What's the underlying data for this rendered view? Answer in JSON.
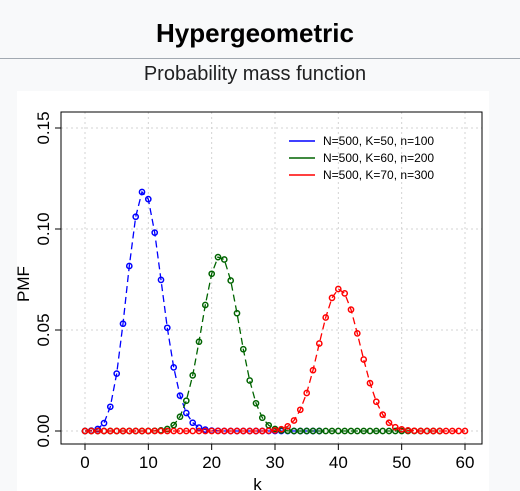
{
  "header": {
    "title": "Hypergeometric"
  },
  "caption": "Probability mass function",
  "chart_data": {
    "type": "line",
    "title": "",
    "xlabel": "k",
    "ylabel": "PMF",
    "xlim": [
      0,
      60
    ],
    "ylim": [
      0,
      0.15
    ],
    "xticks": [
      0,
      10,
      20,
      30,
      40,
      50,
      60
    ],
    "yticks": [
      0.0,
      0.05,
      0.1,
      0.15
    ],
    "ytick_labels": [
      "0.00",
      "0.05",
      "0.10",
      "0.15"
    ],
    "grid": true,
    "legend_position": "top-right",
    "markers": "open-circle",
    "line_style": "dashed",
    "series": [
      {
        "name": "N=500, K=50, n=100",
        "color": "#0000ff",
        "x": [
          0,
          1,
          2,
          3,
          4,
          5,
          6,
          7,
          8,
          9,
          10,
          11,
          12,
          13,
          14,
          15,
          16,
          17,
          18,
          19,
          20,
          21,
          22,
          23,
          24,
          25,
          26,
          27,
          28,
          29,
          30,
          31,
          32,
          33,
          34,
          35,
          36,
          37
        ],
        "values": [
          0.0,
          0.0002,
          0.001,
          0.0039,
          0.012,
          0.0284,
          0.0531,
          0.0817,
          0.1061,
          0.1183,
          0.1148,
          0.0982,
          0.0748,
          0.0511,
          0.0315,
          0.0175,
          0.0089,
          0.0041,
          0.0017,
          0.0007,
          0.0002,
          0.0001,
          0.0,
          0.0,
          0.0,
          0.0,
          0.0,
          0.0,
          0.0,
          0.0,
          0.0,
          0.0,
          0.0,
          0.0,
          0.0,
          0.0,
          0.0,
          0.0
        ]
      },
      {
        "name": "N=500, K=60, n=200",
        "color": "#006400",
        "x": [
          0,
          1,
          2,
          3,
          4,
          5,
          6,
          7,
          8,
          9,
          10,
          11,
          12,
          13,
          14,
          15,
          16,
          17,
          18,
          19,
          20,
          21,
          22,
          23,
          24,
          25,
          26,
          27,
          28,
          29,
          30,
          31,
          32,
          33,
          34,
          35,
          36,
          37,
          38,
          39,
          40,
          41,
          42,
          43,
          44,
          45,
          46,
          47,
          48,
          49,
          50,
          51,
          52,
          53,
          54,
          55,
          56
        ],
        "values": [
          0,
          0,
          0,
          0,
          0,
          0,
          0,
          0,
          0,
          0,
          0,
          0.0001,
          0.0003,
          0.001,
          0.0029,
          0.0071,
          0.015,
          0.0275,
          0.0442,
          0.0624,
          0.0778,
          0.0861,
          0.0849,
          0.0745,
          0.0583,
          0.0405,
          0.025,
          0.0137,
          0.0066,
          0.0028,
          0.001,
          0.0003,
          0.0001,
          0,
          0,
          0,
          0,
          0,
          0,
          0,
          0,
          0,
          0,
          0,
          0,
          0,
          0,
          0,
          0,
          0,
          0,
          0,
          0,
          0,
          0,
          0,
          0
        ]
      },
      {
        "name": "N=500, K=70, n=300",
        "color": "#ff0000",
        "x": [
          0,
          1,
          2,
          3,
          4,
          5,
          6,
          7,
          8,
          9,
          10,
          11,
          12,
          13,
          14,
          15,
          16,
          17,
          18,
          19,
          20,
          21,
          22,
          23,
          24,
          25,
          26,
          27,
          28,
          29,
          30,
          31,
          32,
          33,
          34,
          35,
          36,
          37,
          38,
          39,
          40,
          41,
          42,
          43,
          44,
          45,
          46,
          47,
          48,
          49,
          50,
          51,
          52,
          53,
          54,
          55,
          56,
          57,
          58,
          59,
          60
        ],
        "values": [
          0,
          0,
          0,
          0,
          0,
          0,
          0,
          0,
          0,
          0,
          0,
          0,
          0,
          0,
          0,
          0,
          0,
          0,
          0,
          0,
          0,
          0,
          0,
          0,
          0,
          0,
          0,
          0,
          0,
          0.0001,
          0.0003,
          0.0009,
          0.0023,
          0.0052,
          0.0105,
          0.0188,
          0.0301,
          0.0433,
          0.0562,
          0.0659,
          0.0703,
          0.0681,
          0.0601,
          0.0483,
          0.0354,
          0.0237,
          0.0145,
          0.0081,
          0.0041,
          0.0019,
          0.0008,
          0.0003,
          0.0001,
          0,
          0,
          0,
          0,
          0,
          0,
          0,
          0
        ]
      }
    ]
  }
}
